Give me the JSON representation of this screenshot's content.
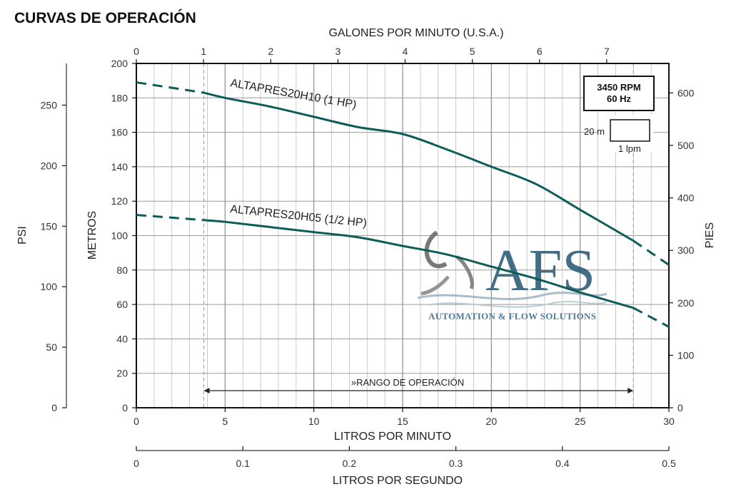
{
  "page_title": "CURVAS DE OPERACIÓN",
  "chart_data": {
    "type": "line",
    "xlabel": "LITROS POR MINUTO",
    "xlim": [
      0,
      30
    ],
    "xticks": [
      0,
      5,
      10,
      15,
      20,
      25,
      30
    ],
    "ylabel": "METROS",
    "ylim": [
      0,
      200
    ],
    "yticks": [
      0,
      20,
      40,
      60,
      80,
      100,
      120,
      140,
      160,
      180,
      200
    ],
    "grid": true,
    "top_axis": {
      "label": "GALONES POR MINUTO (U.S.A.)",
      "ticks": [
        0,
        1,
        2,
        3,
        4,
        5,
        6,
        7
      ]
    },
    "bottom_axis2": {
      "label": "LITROS POR SEGUNDO",
      "ticks": [
        0,
        0.1,
        0.2,
        0.3,
        0.4,
        0.5
      ]
    },
    "left_axis2": {
      "label": "PSI",
      "ticks": [
        0,
        50,
        100,
        150,
        200,
        250
      ]
    },
    "right_axis": {
      "label": "PIES",
      "ticks": [
        0,
        100,
        200,
        300,
        400,
        500,
        600
      ]
    },
    "operating_range": {
      "label": "»RANGO DE OPERACIÓN",
      "x": [
        3.8,
        28
      ]
    },
    "series": [
      {
        "name": "ALTAPRES20H10 (1 HP)",
        "color": "#0d5c5a",
        "x": [
          3.8,
          5,
          7.5,
          10,
          12.5,
          15,
          17.5,
          20,
          22.5,
          25,
          28
        ],
        "values": [
          183,
          180,
          175,
          169,
          163,
          159,
          150,
          140,
          130,
          115,
          97
        ],
        "dashed_start": [
          [
            0,
            189
          ],
          [
            3.8,
            183
          ]
        ],
        "dashed_end": [
          [
            28,
            97
          ],
          [
            30,
            83
          ]
        ]
      },
      {
        "name": "ALTAPRES20H05 (1/2 HP)",
        "color": "#0d5c5a",
        "x": [
          3.8,
          5,
          7.5,
          10,
          12.5,
          15,
          17.5,
          20,
          22.5,
          25,
          28
        ],
        "values": [
          109,
          108,
          105,
          102,
          99,
          94,
          89,
          82,
          75,
          67,
          58
        ],
        "dashed_start": [
          [
            0,
            112
          ],
          [
            3.8,
            109
          ]
        ],
        "dashed_end": [
          [
            28,
            58
          ],
          [
            30,
            47
          ]
        ]
      }
    ]
  },
  "legend_box": {
    "rpm": "3450 RPM",
    "hz": "60 Hz",
    "scale_y": "20 m",
    "scale_x": "1 lpm"
  },
  "logo": {
    "text": "AFS",
    "subtitle": "AUTOMATION & FLOW SOLUTIONS"
  }
}
